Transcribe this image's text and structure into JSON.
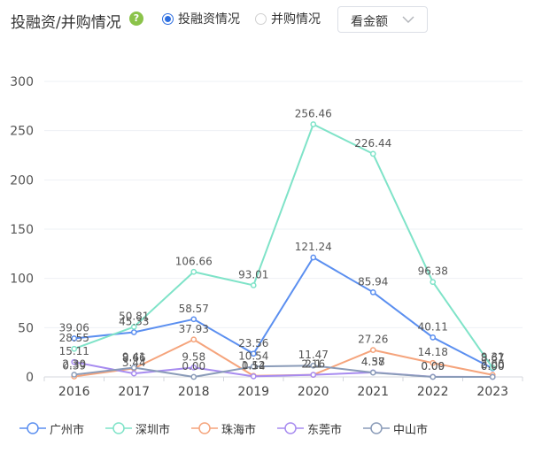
{
  "header": {
    "title": "投融资/并购情况",
    "help_icon": "?",
    "radio_options": [
      {
        "label": "投融资情况",
        "checked": true
      },
      {
        "label": "并购情况",
        "checked": false
      }
    ],
    "select_value": "看金额"
  },
  "chart_data": {
    "type": "line",
    "categories": [
      "2016",
      "2017",
      "2018",
      "2019",
      "2020",
      "2021",
      "2022",
      "2023"
    ],
    "ylim": [
      0,
      300
    ],
    "yticks": [
      0,
      50,
      100,
      150,
      200,
      250,
      300
    ],
    "grid": true,
    "legend_position": "bottom",
    "series": [
      {
        "name": "广州市",
        "color": "#5b8ff0",
        "values": [
          39.06,
          45.33,
          58.57,
          23.56,
          121.24,
          85.94,
          40.11,
          8.67
        ]
      },
      {
        "name": "深圳市",
        "color": "#7fe3c8",
        "values": [
          28.55,
          50.81,
          106.66,
          93.01,
          256.46,
          226.44,
          96.38,
          9.31
        ]
      },
      {
        "name": "珠海市",
        "color": "#f5a47c",
        "values": [
          0.39,
          8.66,
          37.93,
          1.12,
          2.16,
          27.26,
          14.18,
          2.0
        ]
      },
      {
        "name": "东莞市",
        "color": "#a78bf0",
        "values": [
          15.11,
          3.44,
          9.58,
          0.54,
          2.1,
          4.58,
          0.09,
          0.0
        ]
      },
      {
        "name": "中山市",
        "color": "#8a9bb8",
        "values": [
          2.3,
          9.41,
          0.0,
          10.54,
          11.47,
          4.37,
          0.0,
          0.0
        ]
      }
    ]
  }
}
